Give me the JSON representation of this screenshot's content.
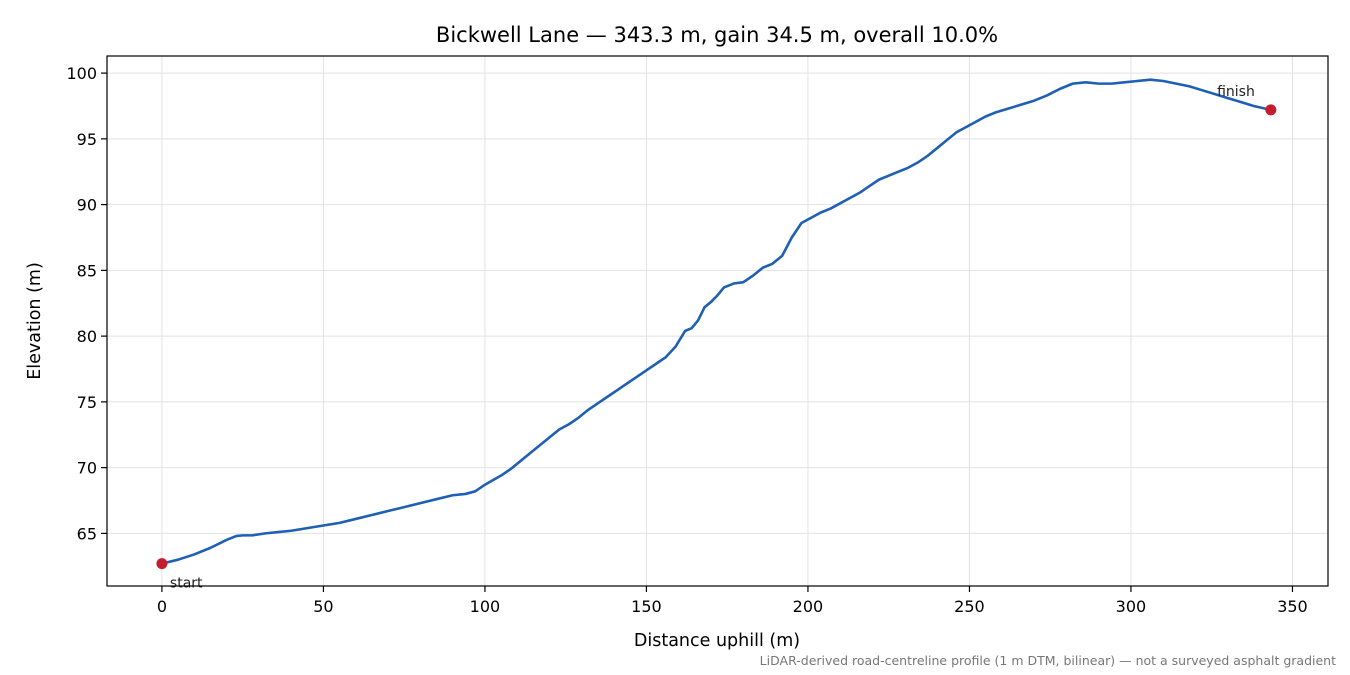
{
  "chart_data": {
    "type": "line",
    "title": "Bickwell Lane — 343.3 m, gain 34.5 m, overall 10.0%",
    "xlabel": "Distance uphill (m)",
    "ylabel": "Elevation (m)",
    "xlim": [
      -17,
      361
    ],
    "ylim": [
      61,
      101.3
    ],
    "xticks": [
      0,
      50,
      100,
      150,
      200,
      250,
      300,
      350
    ],
    "yticks": [
      65,
      70,
      75,
      80,
      85,
      90,
      95,
      100
    ],
    "xtick_labels": [
      "0",
      "50",
      "100",
      "150",
      "200",
      "250",
      "300",
      "350"
    ],
    "ytick_labels": [
      "65",
      "70",
      "75",
      "80",
      "85",
      "90",
      "95",
      "100"
    ],
    "grid": true,
    "line_color": "#1f5fb4",
    "marker_color": "#c41e2e",
    "footnote": "LiDAR-derived road-centreline profile (1 m DTM, bilinear) — not a surveyed asphalt gradient",
    "series": [
      {
        "x": [
          0,
          5,
          10,
          15,
          20,
          23,
          25,
          28,
          32,
          36,
          40,
          45,
          50,
          55,
          60,
          65,
          70,
          75,
          80,
          85,
          90,
          94,
          97,
          100,
          105,
          108,
          111,
          114,
          117,
          120,
          123,
          126,
          129,
          132,
          135,
          138,
          141,
          144,
          147,
          150,
          153,
          156,
          159,
          162,
          164,
          166,
          168,
          170,
          172,
          174,
          177,
          180,
          183,
          186,
          189,
          192,
          195,
          198,
          201,
          204,
          207,
          210,
          213,
          216,
          219,
          222,
          225,
          228,
          231,
          234,
          237,
          240,
          243,
          246,
          249,
          252,
          255,
          258,
          262,
          266,
          270,
          274,
          278,
          282,
          286,
          290,
          294,
          298,
          302,
          306,
          310,
          314,
          318,
          322,
          326,
          330,
          334,
          338,
          343.3
        ],
        "y": [
          62.7,
          63.0,
          63.4,
          63.9,
          64.5,
          64.8,
          64.85,
          64.85,
          65.0,
          65.1,
          65.2,
          65.4,
          65.6,
          65.8,
          66.1,
          66.4,
          66.7,
          67.0,
          67.3,
          67.6,
          67.9,
          68.0,
          68.2,
          68.7,
          69.4,
          69.9,
          70.5,
          71.1,
          71.7,
          72.3,
          72.9,
          73.3,
          73.8,
          74.4,
          74.9,
          75.4,
          75.9,
          76.4,
          76.9,
          77.4,
          77.9,
          78.4,
          79.2,
          80.4,
          80.6,
          81.2,
          82.2,
          82.6,
          83.1,
          83.7,
          84.0,
          84.1,
          84.6,
          85.2,
          85.5,
          86.1,
          87.5,
          88.6,
          89.0,
          89.4,
          89.7,
          90.1,
          90.5,
          90.9,
          91.4,
          91.9,
          92.2,
          92.5,
          92.8,
          93.2,
          93.7,
          94.3,
          94.9,
          95.5,
          95.9,
          96.3,
          96.7,
          97.0,
          97.3,
          97.6,
          97.9,
          98.3,
          98.8,
          99.2,
          99.3,
          99.2,
          99.2,
          99.3,
          99.4,
          99.5,
          99.4,
          99.2,
          99.0,
          98.7,
          98.4,
          98.1,
          97.8,
          97.5,
          97.2
        ]
      }
    ],
    "annotations": [
      {
        "text": "start",
        "x": 0,
        "y": 62.7
      },
      {
        "text": "finish",
        "x": 343.3,
        "y": 97.2
      }
    ]
  }
}
